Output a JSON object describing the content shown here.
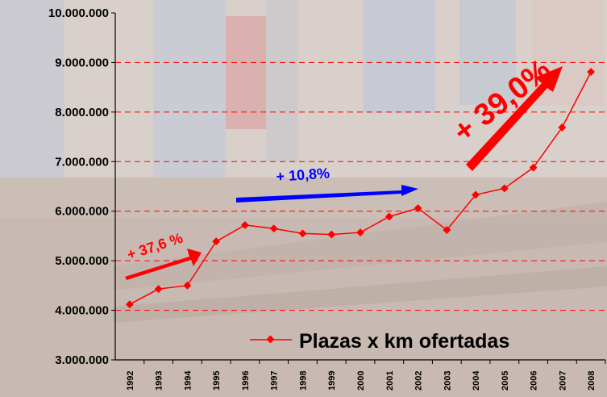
{
  "chart_data": {
    "type": "line",
    "title": "",
    "xlabel": "",
    "ylabel": "",
    "x": [
      "1992",
      "1993",
      "1994",
      "1995",
      "1996",
      "1997",
      "1998",
      "1999",
      "2000",
      "2001",
      "2002",
      "2003",
      "2004",
      "2005",
      "2006",
      "2007",
      "2008"
    ],
    "series": [
      {
        "name": "Plazas x km ofertadas",
        "color": "#ff0000",
        "values": [
          4120000,
          4430000,
          4500000,
          5390000,
          5720000,
          5650000,
          5550000,
          5530000,
          5570000,
          5890000,
          6060000,
          5620000,
          6330000,
          6460000,
          6880000,
          7690000,
          8810000
        ]
      }
    ],
    "ylim": [
      3000000,
      10000000
    ],
    "yticks": [
      3000000,
      4000000,
      5000000,
      6000000,
      7000000,
      8000000,
      9000000,
      10000000
    ],
    "ytick_labels": [
      "3.000.000",
      "4.000.000",
      "5.000.000",
      "6.000.000",
      "7.000.000",
      "8.000.000",
      "9.000.000",
      "10.000.000"
    ],
    "grid": {
      "y": true,
      "style": "dashed",
      "color": "#ff0000"
    },
    "legend_position": "bottom-right",
    "annotations": [
      {
        "text": "+ 37,6 %",
        "color": "#ff0000",
        "arrow_color": "#ff0000"
      },
      {
        "text": "+ 10,8%",
        "color": "#0000ff",
        "arrow_color": "#0000ff"
      },
      {
        "text": "+ 39,0%",
        "color": "#ff0000",
        "arrow_color": "#ff0000"
      }
    ]
  }
}
